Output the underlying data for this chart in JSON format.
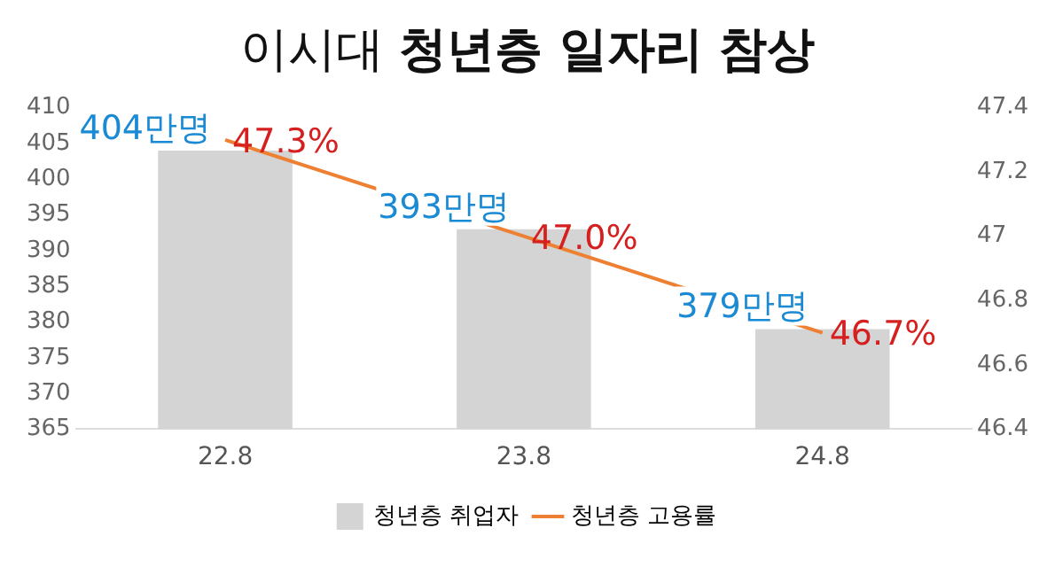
{
  "chart_data": {
    "type": "bar",
    "title": "이시대 청년층 일자리 참상",
    "categories": [
      "22.8",
      "23.8",
      "24.8"
    ],
    "series": [
      {
        "name": "청년층 취업자",
        "color": "#d4d4d4",
        "values": [
          404,
          393,
          379
        ],
        "value_labels": [
          "404만명",
          "393만명",
          "379만명"
        ]
      },
      {
        "name": "청년층 고용률",
        "type": "line",
        "axis": "y2",
        "color": "#ee8033",
        "values": [
          47.3,
          47.0,
          46.7
        ],
        "value_labels": [
          "47.3%",
          "47.0%",
          "46.7%"
        ]
      }
    ],
    "ylim": [
      365,
      410
    ],
    "yticks": [
      365,
      370,
      375,
      380,
      385,
      390,
      395,
      400,
      405,
      410
    ],
    "y2lim": [
      46.4,
      47.4
    ],
    "y2ticks": [
      46.4,
      46.6,
      46.8,
      47,
      47.2,
      47.4
    ],
    "grid": false,
    "legend": "bottom",
    "marker": "none",
    "line_style": "solid"
  }
}
